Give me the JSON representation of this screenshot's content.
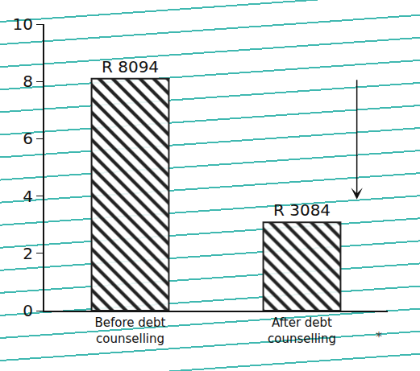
{
  "chart_data": {
    "type": "bar",
    "categories": [
      "Before debt counselling",
      "After debt counselling"
    ],
    "values": [
      8.094,
      3.084
    ],
    "value_labels": [
      "R 8094",
      "R 3084"
    ],
    "data_labels": true,
    "color": "#222222",
    "ylim": [
      0,
      10
    ],
    "yticks": [
      0,
      2,
      4,
      6,
      8,
      10
    ],
    "grid": false,
    "annotations": [
      "*"
    ]
  }
}
